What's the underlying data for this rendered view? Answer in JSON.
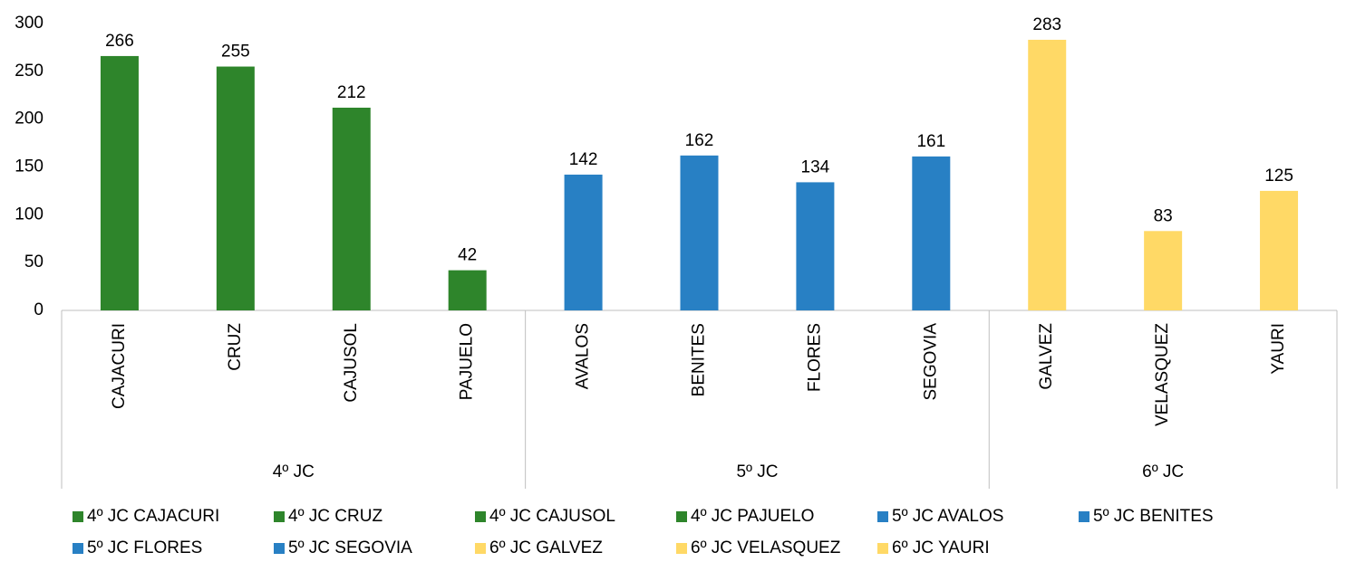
{
  "chart_data": {
    "type": "bar",
    "ylim": [
      0,
      300
    ],
    "yticks": [
      0,
      50,
      100,
      150,
      200,
      250,
      300
    ],
    "groups": [
      {
        "name": "4º JC",
        "color": "#2e852b",
        "categories": [
          "CAJACURI",
          "CRUZ",
          "CAJUSOL",
          "PAJUELO"
        ],
        "values": [
          266,
          255,
          212,
          42
        ],
        "legend": [
          "4º JC CAJACURI",
          "4º JC CRUZ",
          "4º JC CAJUSOL",
          "4º JC PAJUELO"
        ]
      },
      {
        "name": "5º JC",
        "color": "#2880c4",
        "categories": [
          "AVALOS",
          "BENITES",
          "FLORES",
          "SEGOVIA"
        ],
        "values": [
          142,
          162,
          134,
          161
        ],
        "legend": [
          "5º JC AVALOS",
          "5º JC BENITES",
          "5º JC FLORES",
          "5º JC SEGOVIA"
        ]
      },
      {
        "name": "6º JC",
        "color": "#ffd966",
        "categories": [
          "GALVEZ",
          "VELASQUEZ",
          "YAURI"
        ],
        "values": [
          283,
          83,
          125
        ],
        "legend": [
          "6º JC GALVEZ",
          "6º JC VELASQUEZ",
          "6º JC YAURI"
        ]
      }
    ]
  }
}
